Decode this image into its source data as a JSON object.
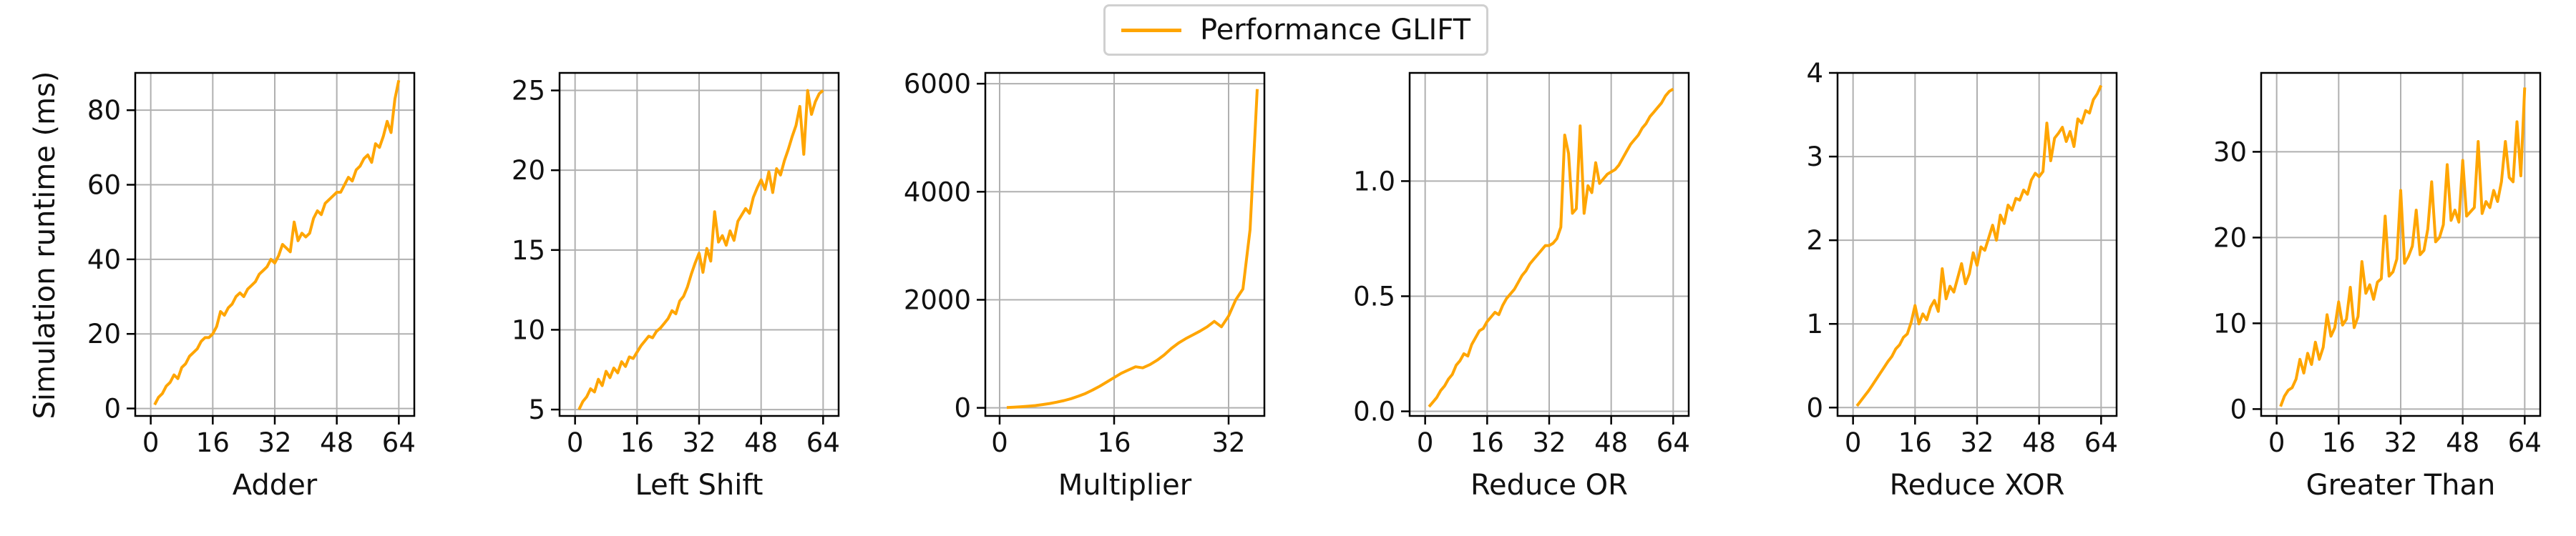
{
  "legend": {
    "label": "Performance GLIFT",
    "color": "#FFA500"
  },
  "ylabel": "Simulation runtime (ms)",
  "chart_data": [
    {
      "type": "line",
      "xlabel": "Adder",
      "xlim": [
        -4,
        68
      ],
      "ylim": [
        -2,
        90
      ],
      "xticks": [
        0,
        16,
        32,
        48,
        64
      ],
      "xtick_labels": [
        "0",
        "16",
        "32",
        "48",
        "64"
      ],
      "yticks": [
        0,
        20,
        40,
        60,
        80
      ],
      "ytick_labels": [
        "0",
        "20",
        "40",
        "60",
        "80"
      ],
      "grid": true,
      "series": [
        {
          "name": "Performance GLIFT",
          "x": [
            1,
            2,
            3,
            4,
            5,
            6,
            7,
            8,
            9,
            10,
            11,
            12,
            13,
            14,
            15,
            16,
            17,
            18,
            19,
            20,
            21,
            22,
            23,
            24,
            25,
            26,
            27,
            28,
            29,
            30,
            31,
            32,
            33,
            34,
            35,
            36,
            37,
            38,
            39,
            40,
            41,
            42,
            43,
            44,
            45,
            46,
            47,
            48,
            49,
            50,
            51,
            52,
            53,
            54,
            55,
            56,
            57,
            58,
            59,
            60,
            61,
            62,
            63,
            64
          ],
          "y": [
            1,
            3,
            4,
            6,
            7,
            9,
            8,
            11,
            12,
            14,
            15,
            16,
            18,
            19,
            19,
            20,
            22,
            26,
            25,
            27,
            28,
            30,
            31,
            30,
            32,
            33,
            34,
            36,
            37,
            38,
            40,
            39,
            41,
            44,
            43,
            42,
            50,
            45,
            47,
            46,
            47,
            51,
            53,
            52,
            55,
            56,
            57,
            58,
            58,
            60,
            62,
            61,
            64,
            65,
            67,
            68,
            66,
            71,
            70,
            73,
            77,
            74,
            83,
            88
          ]
        }
      ]
    },
    {
      "type": "line",
      "xlabel": "Left Shift",
      "xlim": [
        -4,
        68
      ],
      "ylim": [
        4.6,
        26.1
      ],
      "xticks": [
        0,
        16,
        32,
        48,
        64
      ],
      "xtick_labels": [
        "0",
        "16",
        "32",
        "48",
        "64"
      ],
      "yticks": [
        5,
        10,
        15,
        20,
        25
      ],
      "ytick_labels": [
        "5",
        "10",
        "15",
        "20",
        "25"
      ],
      "grid": true,
      "series": [
        {
          "name": "Performance GLIFT",
          "x": [
            1,
            2,
            3,
            4,
            5,
            6,
            7,
            8,
            9,
            10,
            11,
            12,
            13,
            14,
            15,
            16,
            17,
            18,
            19,
            20,
            21,
            22,
            23,
            24,
            25,
            26,
            27,
            28,
            29,
            30,
            31,
            32,
            33,
            34,
            35,
            36,
            37,
            38,
            39,
            40,
            41,
            42,
            43,
            44,
            45,
            46,
            47,
            48,
            49,
            50,
            51,
            52,
            53,
            54,
            55,
            56,
            57,
            58,
            59,
            60,
            61,
            62,
            63,
            64
          ],
          "y": [
            5.0,
            5.5,
            5.8,
            6.3,
            6.1,
            6.9,
            6.5,
            7.4,
            7.0,
            7.6,
            7.3,
            8.0,
            7.7,
            8.3,
            8.2,
            8.6,
            9.0,
            9.3,
            9.6,
            9.5,
            9.9,
            10.1,
            10.4,
            10.7,
            11.2,
            11.0,
            11.8,
            12.1,
            12.7,
            13.5,
            14.2,
            14.8,
            13.6,
            15.1,
            14.3,
            17.4,
            15.5,
            15.9,
            15.3,
            16.2,
            15.6,
            16.8,
            17.2,
            17.6,
            17.3,
            18.3,
            18.9,
            19.4,
            18.8,
            19.9,
            18.6,
            20.1,
            19.7,
            20.6,
            21.3,
            22.1,
            22.8,
            24.0,
            21.0,
            25.0,
            23.5,
            24.3,
            24.8,
            25.0
          ]
        }
      ]
    },
    {
      "type": "line",
      "xlabel": "Multiplier",
      "xlim": [
        -2,
        37
      ],
      "ylim": [
        -150,
        6200
      ],
      "xticks": [
        0,
        16,
        32
      ],
      "xtick_labels": [
        "0",
        "16",
        "32"
      ],
      "yticks": [
        0,
        2000,
        4000,
        6000
      ],
      "ytick_labels": [
        "0",
        "2000",
        "4000",
        "6000"
      ],
      "grid": true,
      "series": [
        {
          "name": "Performance GLIFT",
          "x": [
            1,
            2,
            3,
            4,
            5,
            6,
            7,
            8,
            9,
            10,
            11,
            12,
            13,
            14,
            15,
            16,
            17,
            18,
            19,
            20,
            21,
            22,
            23,
            24,
            25,
            26,
            27,
            28,
            29,
            30,
            31,
            32,
            33,
            34,
            35,
            36
          ],
          "y": [
            5,
            12,
            20,
            30,
            42,
            60,
            80,
            105,
            135,
            170,
            215,
            265,
            330,
            400,
            480,
            560,
            640,
            700,
            760,
            740,
            800,
            880,
            980,
            1100,
            1200,
            1280,
            1350,
            1420,
            1500,
            1600,
            1500,
            1700,
            2000,
            2200,
            3300,
            5900
          ]
        }
      ]
    },
    {
      "type": "line",
      "xlabel": "Reduce OR",
      "xlim": [
        -4,
        68
      ],
      "ylim": [
        -0.02,
        1.47
      ],
      "xticks": [
        0,
        16,
        32,
        48,
        64
      ],
      "xtick_labels": [
        "0",
        "16",
        "32",
        "48",
        "64"
      ],
      "yticks": [
        0.0,
        0.5,
        1.0
      ],
      "ytick_labels": [
        "0.0",
        "0.5",
        "1.0"
      ],
      "grid": true,
      "series": [
        {
          "name": "Performance GLIFT",
          "x": [
            1,
            2,
            3,
            4,
            5,
            6,
            7,
            8,
            9,
            10,
            11,
            12,
            13,
            14,
            15,
            16,
            17,
            18,
            19,
            20,
            21,
            22,
            23,
            24,
            25,
            26,
            27,
            28,
            29,
            30,
            31,
            32,
            33,
            34,
            35,
            36,
            37,
            38,
            39,
            40,
            41,
            42,
            43,
            44,
            45,
            46,
            47,
            48,
            49,
            50,
            51,
            52,
            53,
            54,
            55,
            56,
            57,
            58,
            59,
            60,
            61,
            62,
            63,
            64
          ],
          "y": [
            0.02,
            0.04,
            0.06,
            0.09,
            0.11,
            0.14,
            0.16,
            0.2,
            0.22,
            0.25,
            0.24,
            0.29,
            0.32,
            0.35,
            0.36,
            0.39,
            0.41,
            0.43,
            0.42,
            0.46,
            0.49,
            0.51,
            0.53,
            0.56,
            0.59,
            0.61,
            0.64,
            0.66,
            0.68,
            0.7,
            0.72,
            0.72,
            0.73,
            0.75,
            0.8,
            1.2,
            1.12,
            0.86,
            0.88,
            1.24,
            0.86,
            0.98,
            0.95,
            1.08,
            0.99,
            1.01,
            1.03,
            1.04,
            1.05,
            1.07,
            1.1,
            1.13,
            1.16,
            1.18,
            1.2,
            1.23,
            1.25,
            1.28,
            1.3,
            1.32,
            1.34,
            1.37,
            1.39,
            1.4
          ]
        }
      ]
    },
    {
      "type": "line",
      "xlabel": "Reduce XOR",
      "xlim": [
        -4,
        68
      ],
      "ylim": [
        -0.1,
        4.0
      ],
      "xticks": [
        0,
        16,
        32,
        48,
        64
      ],
      "xtick_labels": [
        "0",
        "16",
        "32",
        "48",
        "64"
      ],
      "yticks": [
        0,
        1,
        2,
        3,
        4
      ],
      "ytick_labels": [
        "0",
        "1",
        "2",
        "3",
        "4"
      ],
      "grid": true,
      "series": [
        {
          "name": "Performance GLIFT",
          "x": [
            1,
            2,
            3,
            4,
            5,
            6,
            7,
            8,
            9,
            10,
            11,
            12,
            13,
            14,
            15,
            16,
            17,
            18,
            19,
            20,
            21,
            22,
            23,
            24,
            25,
            26,
            27,
            28,
            29,
            30,
            31,
            32,
            33,
            34,
            35,
            36,
            37,
            38,
            39,
            40,
            41,
            42,
            43,
            44,
            45,
            46,
            47,
            48,
            49,
            50,
            51,
            52,
            53,
            54,
            55,
            56,
            57,
            58,
            59,
            60,
            61,
            62,
            63,
            64
          ],
          "y": [
            0.02,
            0.08,
            0.14,
            0.2,
            0.27,
            0.34,
            0.41,
            0.48,
            0.55,
            0.61,
            0.7,
            0.75,
            0.84,
            0.88,
            1.02,
            1.22,
            1.0,
            1.12,
            1.05,
            1.2,
            1.28,
            1.15,
            1.66,
            1.3,
            1.45,
            1.38,
            1.55,
            1.72,
            1.48,
            1.6,
            1.85,
            1.7,
            1.92,
            1.88,
            2.03,
            2.18,
            2.0,
            2.3,
            2.2,
            2.42,
            2.36,
            2.5,
            2.48,
            2.6,
            2.55,
            2.72,
            2.8,
            2.76,
            2.82,
            3.4,
            2.95,
            3.22,
            3.28,
            3.35,
            3.18,
            3.3,
            3.12,
            3.45,
            3.4,
            3.55,
            3.52,
            3.68,
            3.75,
            3.85
          ]
        }
      ]
    },
    {
      "type": "line",
      "xlabel": "Greater Than",
      "xlim": [
        -4,
        68
      ],
      "ylim": [
        -0.8,
        39.2
      ],
      "xticks": [
        0,
        16,
        32,
        48,
        64
      ],
      "xtick_labels": [
        "0",
        "16",
        "32",
        "48",
        "64"
      ],
      "yticks": [
        0,
        10,
        20,
        30
      ],
      "ytick_labels": [
        "0",
        "10",
        "20",
        "30"
      ],
      "grid": true,
      "series": [
        {
          "name": "Performance GLIFT",
          "x": [
            1,
            2,
            3,
            4,
            5,
            6,
            7,
            8,
            9,
            10,
            11,
            12,
            13,
            14,
            15,
            16,
            17,
            18,
            19,
            20,
            21,
            22,
            23,
            24,
            25,
            26,
            27,
            28,
            29,
            30,
            31,
            32,
            33,
            34,
            35,
            36,
            37,
            38,
            39,
            40,
            41,
            42,
            43,
            44,
            45,
            46,
            47,
            48,
            49,
            50,
            51,
            52,
            53,
            54,
            55,
            56,
            57,
            58,
            59,
            60,
            61,
            62,
            63,
            64
          ],
          "y": [
            0.3,
            1.5,
            2.2,
            2.5,
            3.5,
            5.8,
            4.2,
            6.5,
            5.2,
            7.8,
            5.8,
            7.2,
            11.0,
            8.5,
            9.5,
            12.5,
            9.8,
            10.5,
            14.2,
            9.5,
            10.8,
            17.2,
            13.5,
            14.5,
            12.8,
            14.8,
            15.2,
            22.5,
            15.5,
            16.0,
            17.5,
            25.5,
            17.0,
            17.8,
            19.0,
            23.2,
            18.0,
            18.5,
            21.0,
            26.5,
            19.5,
            20.0,
            21.5,
            28.5,
            22.0,
            23.2,
            21.8,
            29.0,
            22.5,
            23.0,
            23.5,
            31.2,
            22.8,
            24.2,
            23.5,
            25.5,
            24.2,
            26.5,
            31.2,
            27.0,
            26.5,
            33.5,
            27.2,
            37.5
          ]
        }
      ]
    }
  ]
}
